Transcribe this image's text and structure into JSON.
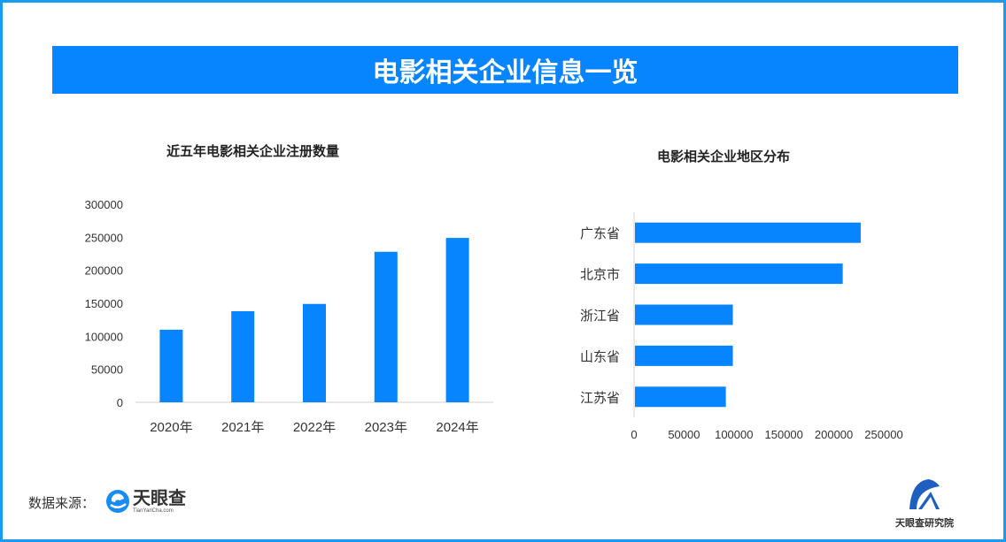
{
  "banner_title": "电影相关企业信息一览",
  "colors": {
    "bar": "#0784ff",
    "frame": "#1a9bf0",
    "banner": "#0784ff"
  },
  "chart_data": [
    {
      "type": "bar",
      "orientation": "vertical",
      "title": "近五年电影相关企业注册数量",
      "categories": [
        "2020年",
        "2021年",
        "2022年",
        "2023年",
        "2024年"
      ],
      "values": [
        110000,
        138000,
        149000,
        228000,
        249000
      ],
      "yticks": [
        "0",
        "50000",
        "100000",
        "150000",
        "200000",
        "250000",
        "300000"
      ],
      "ylim": [
        0,
        300000
      ],
      "grid": false
    },
    {
      "type": "bar",
      "orientation": "horizontal",
      "title": "电影相关企业地区分布",
      "categories": [
        "广东省",
        "北京市",
        "浙江省",
        "山东省",
        "江苏省"
      ],
      "values": [
        226000,
        208000,
        98000,
        98000,
        91000
      ],
      "xticks": [
        "0",
        "50000",
        "100000",
        "150000",
        "200000",
        "250000"
      ],
      "xlim": [
        0,
        250000
      ],
      "grid": false
    }
  ],
  "footer": {
    "source_label": "数据来源：",
    "source_logo_text": "天眼查",
    "source_logo_sub": "TianYanCha.com",
    "institute_logo_text": "天眼查研究院"
  }
}
